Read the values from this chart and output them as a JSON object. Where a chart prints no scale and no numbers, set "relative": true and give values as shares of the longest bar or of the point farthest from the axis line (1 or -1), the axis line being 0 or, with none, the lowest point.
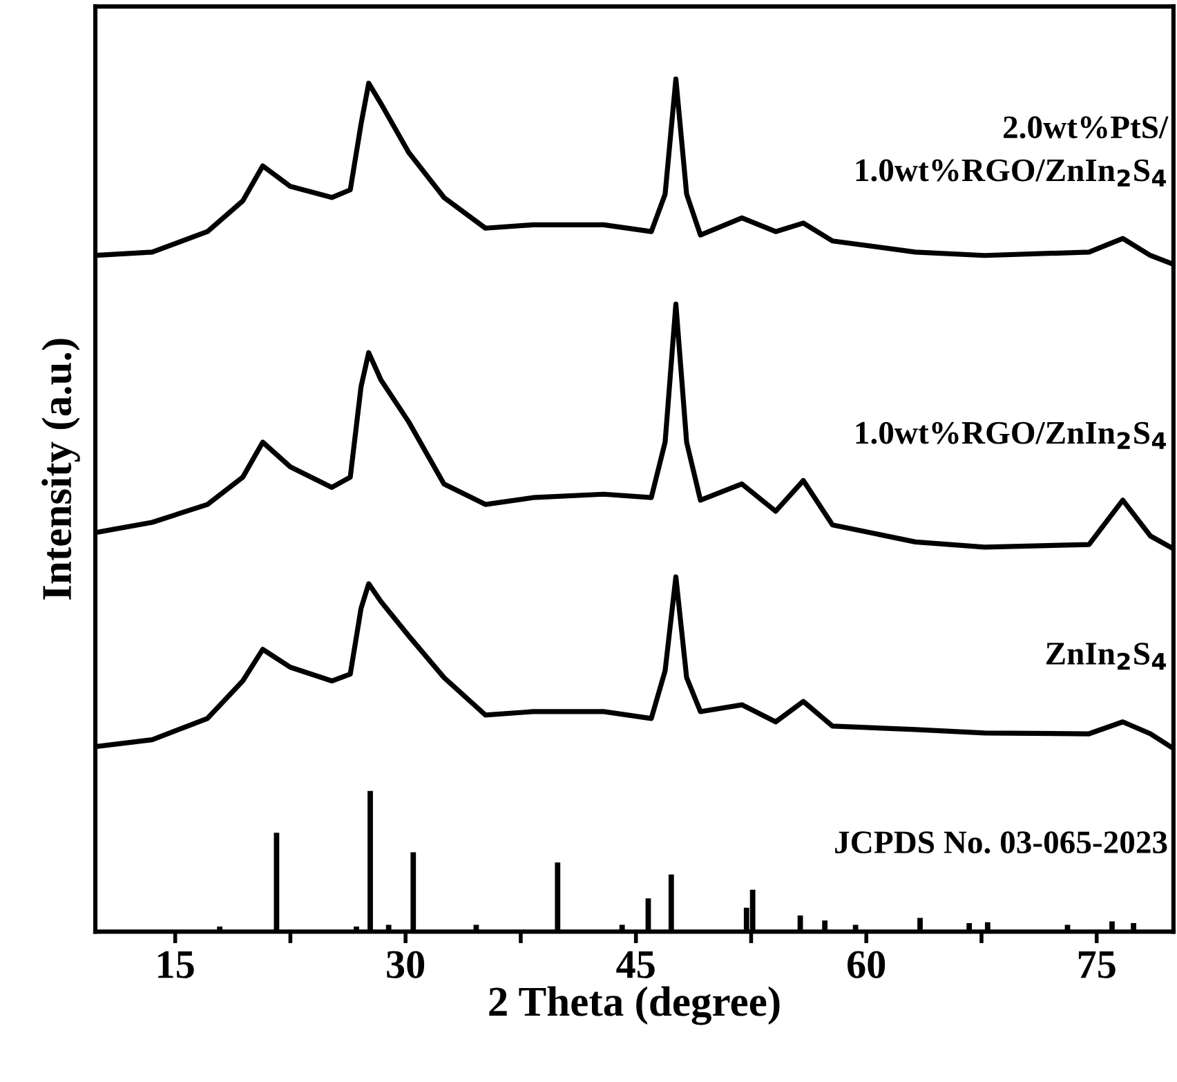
{
  "chart_data": {
    "type": "line",
    "relative": true,
    "xlabel": "2 Theta (degree)",
    "ylabel": "Intensity (a.u.)",
    "xlim": [
      9.8,
      80
    ],
    "xticks": [
      15,
      {
        "value": 22.5,
        "label": null
      },
      30,
      {
        "value": 37.5,
        "label": null
      },
      45,
      {
        "value": 52.5,
        "label": null
      },
      60,
      {
        "value": 67.5,
        "label": null
      },
      75
    ],
    "tick_labels": "x",
    "grid": false,
    "legend": false,
    "marker": "none",
    "line_style": "solid",
    "series": [
      {
        "name": "2.0wt%PtS/\n1.0wt%RGO/ZnIn$_{2}$S$_{4}$",
        "color": "#000000",
        "x": [
          9.8,
          13.5,
          17.1,
          19.4,
          20.7,
          22.5,
          25.2,
          26.4,
          27.1,
          27.6,
          28.4,
          30.2,
          32.5,
          35.2,
          38.3,
          42.9,
          46.0,
          46.9,
          47.6,
          48.3,
          49.2,
          51.9,
          54.1,
          55.9,
          57.8,
          63.2,
          67.7,
          74.5,
          76.7,
          78.5,
          79.8
        ],
        "values": [
          0.793,
          0.797,
          0.821,
          0.857,
          0.898,
          0.874,
          0.861,
          0.87,
          0.947,
          0.995,
          0.971,
          0.914,
          0.861,
          0.825,
          0.829,
          0.829,
          0.821,
          0.865,
          1.0,
          0.865,
          0.817,
          0.837,
          0.821,
          0.831,
          0.81,
          0.797,
          0.793,
          0.797,
          0.813,
          0.793,
          0.784
        ]
      },
      {
        "name": "1.0wt%RGO/ZnIn$_{2}$S$_{4}$",
        "color": "#000000",
        "x": [
          9.8,
          13.5,
          17.1,
          19.4,
          20.7,
          22.5,
          25.2,
          26.4,
          27.1,
          27.6,
          28.4,
          30.2,
          32.5,
          35.2,
          38.3,
          42.9,
          46.0,
          46.9,
          47.6,
          48.3,
          49.2,
          51.9,
          54.1,
          55.9,
          57.8,
          63.2,
          67.7,
          74.5,
          76.7,
          78.5,
          79.8
        ],
        "values": [
          0.468,
          0.48,
          0.501,
          0.533,
          0.574,
          0.545,
          0.521,
          0.533,
          0.639,
          0.679,
          0.647,
          0.598,
          0.525,
          0.501,
          0.509,
          0.513,
          0.509,
          0.574,
          0.736,
          0.574,
          0.506,
          0.525,
          0.493,
          0.529,
          0.477,
          0.457,
          0.451,
          0.454,
          0.506,
          0.464,
          0.451
        ]
      },
      {
        "name": "ZnIn$_{2}$S$_{4}$",
        "color": "#000000",
        "x": [
          9.8,
          13.5,
          17.1,
          19.4,
          20.7,
          22.5,
          25.2,
          26.4,
          27.1,
          27.6,
          28.4,
          30.2,
          32.5,
          35.2,
          38.3,
          42.9,
          46.0,
          46.9,
          47.6,
          48.3,
          49.2,
          51.9,
          54.1,
          55.9,
          57.8,
          63.2,
          67.7,
          74.5,
          76.7,
          78.5,
          79.8
        ],
        "values": [
          0.217,
          0.225,
          0.25,
          0.294,
          0.331,
          0.31,
          0.294,
          0.302,
          0.379,
          0.408,
          0.387,
          0.347,
          0.298,
          0.254,
          0.258,
          0.258,
          0.25,
          0.306,
          0.416,
          0.298,
          0.258,
          0.266,
          0.246,
          0.27,
          0.241,
          0.237,
          0.233,
          0.232,
          0.246,
          0.232,
          0.217
        ]
      },
      {
        "name": "JCPDS No. 03-065-2023",
        "type": "bar",
        "color": "#000000",
        "x": [
          17.9,
          21.6,
          26.8,
          27.7,
          28.9,
          30.5,
          34.6,
          39.9,
          44.1,
          45.8,
          47.3,
          52.2,
          52.6,
          55.7,
          57.3,
          59.3,
          63.5,
          66.7,
          67.9,
          73.1,
          76.0,
          77.4
        ],
        "values": [
          0.006,
          0.116,
          0.006,
          0.165,
          0.008,
          0.093,
          0.008,
          0.081,
          0.008,
          0.039,
          0.067,
          0.028,
          0.049,
          0.019,
          0.013,
          0.008,
          0.016,
          0.01,
          0.011,
          0.008,
          0.012,
          0.01
        ]
      }
    ]
  }
}
